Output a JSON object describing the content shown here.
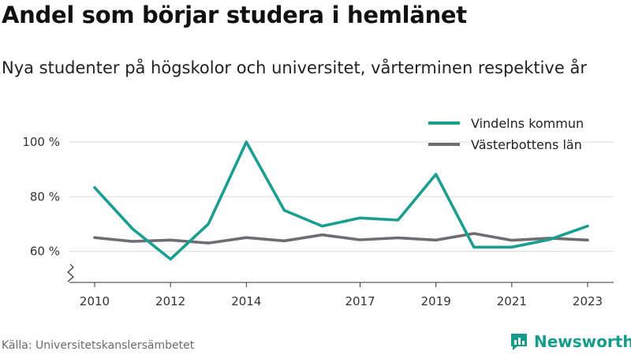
{
  "header": {
    "title": "Andel som börjar studera i hemlänet",
    "subtitle": "Nya studenter på högskolor och universitet, vårterminen respektive år"
  },
  "footer": {
    "source": "Källa: Universitetskanslersämbetet",
    "brand": "Newsworthy"
  },
  "colors": {
    "accent": "#1a9e92",
    "secondary": "#6e6e72",
    "grid": "#dddddd"
  },
  "chart_data": {
    "type": "line",
    "x": [
      2010,
      2011,
      2012,
      2013,
      2014,
      2015,
      2016,
      2017,
      2018,
      2019,
      2020,
      2021,
      2022,
      2023
    ],
    "x_ticks": [
      "2010",
      "2012",
      "2014",
      "2017",
      "2019",
      "2021",
      "2023"
    ],
    "y_ticks": [
      "60 %",
      "80 %",
      "100 %"
    ],
    "ylim": [
      50,
      100
    ],
    "y_axis_break": true,
    "grid": true,
    "legend_position": "top-right",
    "series": [
      {
        "name": "Vindelns kommun",
        "color": "#1a9e92",
        "values": [
          83.3,
          68.2,
          57.1,
          70.0,
          100.0,
          75.0,
          69.2,
          72.2,
          71.4,
          88.2,
          61.5,
          61.5,
          64.3,
          69.2
        ]
      },
      {
        "name": "Västerbottens län",
        "color": "#6e6e72",
        "values": [
          65.0,
          63.6,
          64.1,
          63.0,
          65.0,
          63.8,
          66.0,
          64.2,
          64.9,
          64.1,
          66.5,
          64.0,
          64.8,
          64.1
        ]
      }
    ]
  }
}
